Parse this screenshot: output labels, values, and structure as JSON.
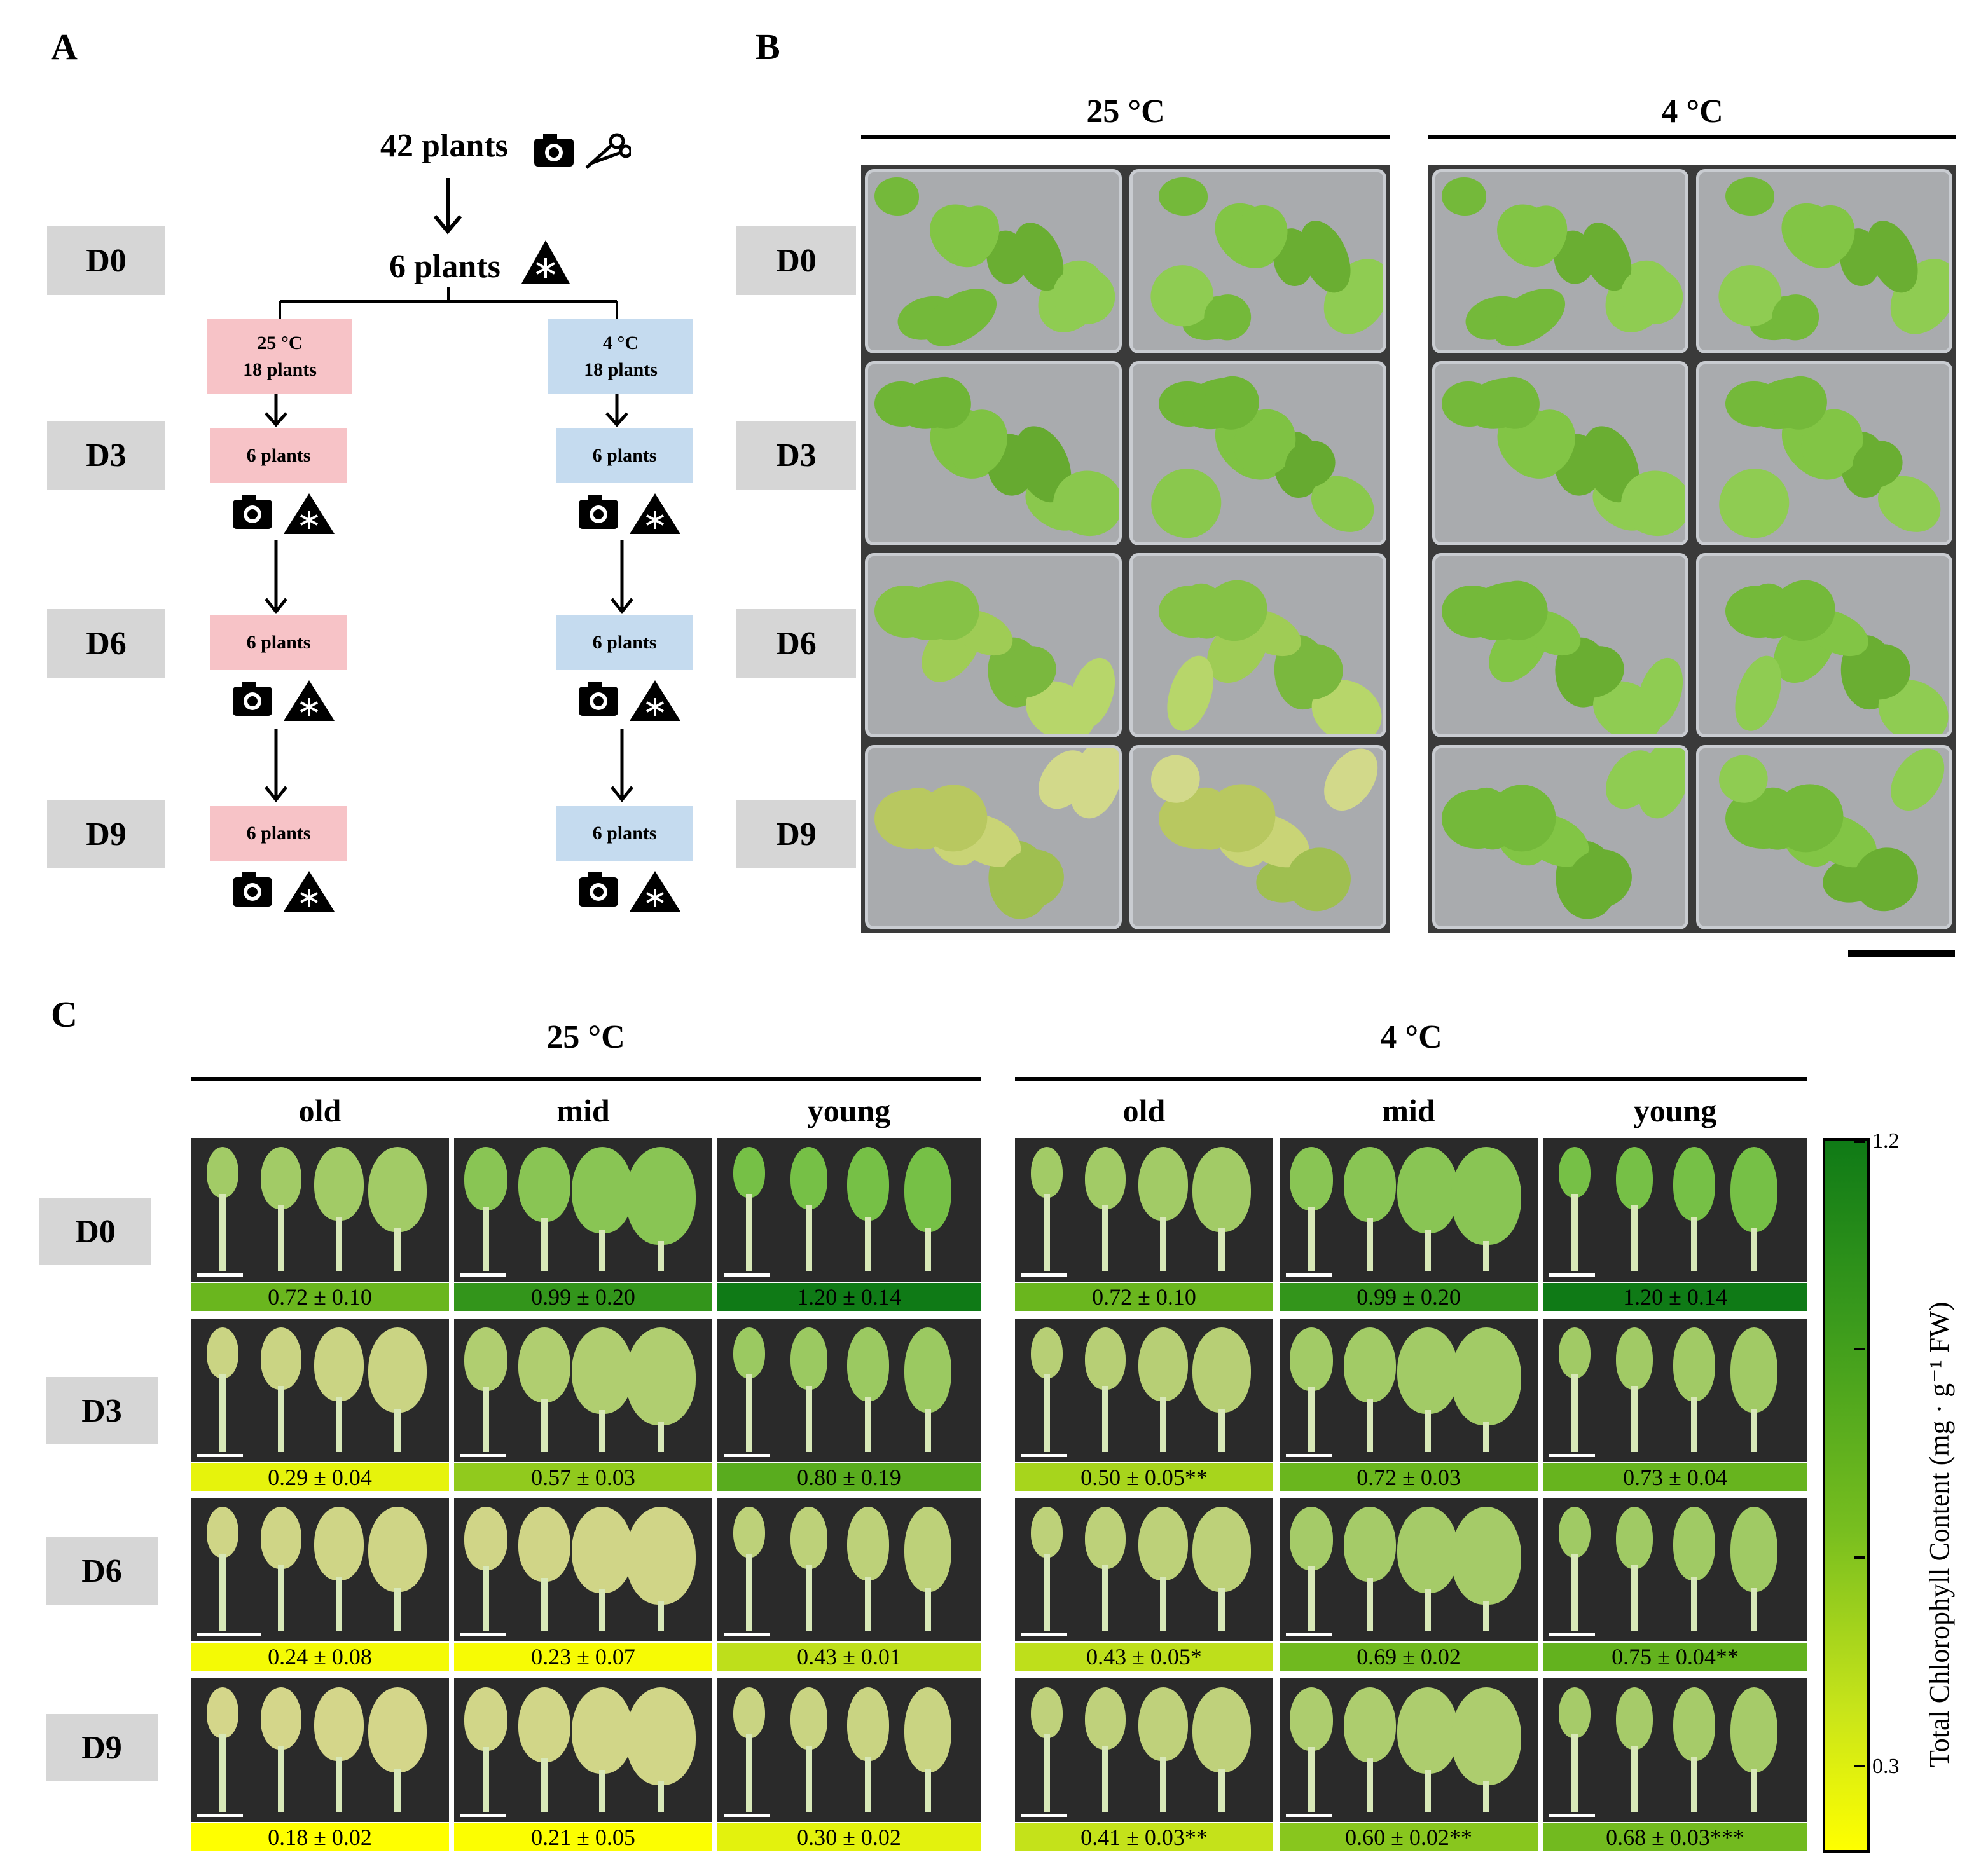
{
  "panels": {
    "a": "A",
    "b": "B",
    "c": "C"
  },
  "days": [
    "D0",
    "D3",
    "D6",
    "D9"
  ],
  "flow": {
    "top": "42 plants",
    "second": "6 plants",
    "left_group": {
      "temp": "25 °C",
      "count": "18 plants"
    },
    "right_group": {
      "temp": "4 °C",
      "count": "18 plants"
    },
    "sub_label": "6 plants"
  },
  "temperatures": {
    "warm": "25 °C",
    "cold": "4 °C"
  },
  "positions": [
    "old",
    "mid",
    "young"
  ],
  "colorbar": {
    "title": "Total Chlorophyll Content (mg · g⁻¹ FW)",
    "max": "1.2",
    "min": "0.3"
  },
  "chlorophyll": {
    "warm": [
      [
        "0.72 ± 0.10",
        "0.99 ± 0.20",
        "1.20 ± 0.14"
      ],
      [
        "0.29 ± 0.04",
        "0.57 ± 0.03",
        "0.80 ± 0.19"
      ],
      [
        "0.24 ± 0.08",
        "0.23 ± 0.07",
        "0.43 ± 0.01"
      ],
      [
        "0.18 ± 0.02",
        "0.21 ± 0.05",
        "0.30 ± 0.02"
      ]
    ],
    "cold": [
      [
        "0.72 ± 0.10",
        "0.99 ± 0.20",
        "1.20 ± 0.14"
      ],
      [
        "0.50 ± 0.05**",
        "0.72 ± 0.03",
        "0.73 ± 0.04"
      ],
      [
        "0.43 ± 0.05*",
        "0.69 ± 0.02",
        "0.75 ± 0.04**"
      ],
      [
        "0.41 ± 0.03**",
        "0.60 ± 0.02**",
        "0.68 ± 0.03***"
      ]
    ]
  },
  "icons": [
    "camera-icon",
    "scissors-icon",
    "freeze-triangle-icon"
  ]
}
